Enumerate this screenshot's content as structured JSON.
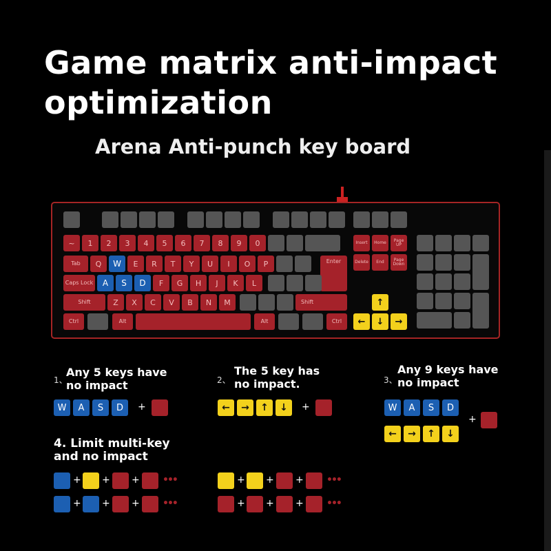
{
  "title": "Game matrix anti-impact optimization",
  "subtitle": "Arena Anti-punch key board",
  "keyboard": {
    "number_row": [
      "~",
      "1",
      "2",
      "3",
      "4",
      "5",
      "6",
      "7",
      "8",
      "9",
      "0"
    ],
    "q_row": [
      "Tab",
      "Q",
      "W",
      "E",
      "R",
      "T",
      "Y",
      "U",
      "I",
      "O",
      "P",
      "Enter"
    ],
    "a_row": [
      "Caps Lock",
      "A",
      "S",
      "D",
      "F",
      "G",
      "H",
      "J",
      "K",
      "L"
    ],
    "z_row": [
      "Shift",
      "Z",
      "X",
      "C",
      "V",
      "B",
      "N",
      "M",
      "Shift"
    ],
    "bottom_row": [
      "Ctrl",
      "Alt",
      "Alt",
      "Ctrl"
    ],
    "nav_top": [
      "Insert",
      "Home",
      "Page UP"
    ],
    "nav_bottom": [
      "Delete",
      "End",
      "Page Down"
    ],
    "arrows": {
      "up": "↑",
      "left": "←",
      "down": "↓",
      "right": "→"
    }
  },
  "legend": {
    "item1": {
      "num": "1、",
      "text": "Any 5 keys have no impact"
    },
    "item2": {
      "num": "2、",
      "text": "The 5 key has no impact."
    },
    "item3": {
      "num": "3、",
      "text": "Any 9 keys have no impact"
    },
    "item4": {
      "text": "4. Limit multi-key and no impact"
    },
    "wasd": [
      "W",
      "A",
      "S",
      "D"
    ],
    "arrows": [
      "←",
      "→",
      "↑",
      "↓"
    ],
    "plus": "+",
    "more": "•••"
  },
  "colors": {
    "red_key": "#a5222a",
    "blue_key": "#1c5fb2",
    "yellow_key": "#f3d11c",
    "gray_key": "#555555",
    "border": "#a52525"
  }
}
